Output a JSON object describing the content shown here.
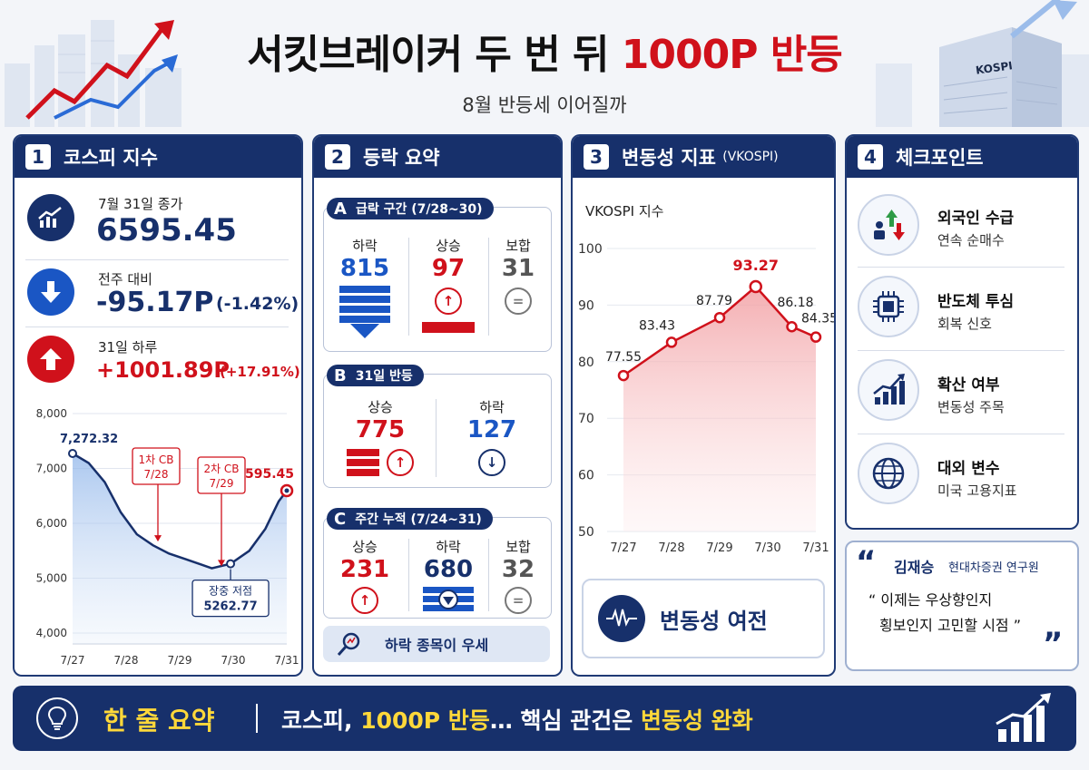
{
  "header": {
    "title_main": "서킷브레이커 두 번 뒤 ",
    "title_accent": "1000P 반등",
    "subtitle": "8월 반등세 이어질까",
    "badge_building": "KOSPI"
  },
  "panel1": {
    "num": "1",
    "title": "코스피 지수",
    "close_label": "7월 31일 종가",
    "close_value": "6595.45",
    "week_label": "전주 대비",
    "week_value": "-95.17P",
    "week_pct": "(-1.42%)",
    "day_label": "31일 하루",
    "day_value": "+1001.89P",
    "day_pct": "(+17.91%)"
  },
  "panel2": {
    "num": "2",
    "title": "등락 요약",
    "secA": {
      "letter": "A",
      "title": "급락 구간 (7/28~30)",
      "cols": [
        {
          "label": "하락",
          "value": "815"
        },
        {
          "label": "상승",
          "value": "97"
        },
        {
          "label": "보합",
          "value": "31"
        }
      ]
    },
    "secB": {
      "letter": "B",
      "title": "31일 반등",
      "cols": [
        {
          "label": "상승",
          "value": "775"
        },
        {
          "label": "하락",
          "value": "127"
        }
      ]
    },
    "secC": {
      "letter": "C",
      "title": "주간 누적 (7/24~31)",
      "cols": [
        {
          "label": "상승",
          "value": "231"
        },
        {
          "label": "하락",
          "value": "680"
        },
        {
          "label": "보합",
          "value": "32"
        }
      ]
    },
    "footer": "하락 종목이 우세"
  },
  "panel3": {
    "num": "3",
    "title": "변동성 지표",
    "title_small": "(VKOSPI)",
    "footer": "변동성 여전"
  },
  "panel4": {
    "num": "4",
    "title": "체크포인트",
    "items": [
      {
        "title": "외국인 수급",
        "sub": "연속 순매수",
        "icon": "investor-flow-icon"
      },
      {
        "title": "반도체 투심",
        "sub": "회복 신호",
        "icon": "chip-icon"
      },
      {
        "title": "확산 여부",
        "sub": "변동성 주목",
        "icon": "growth-chart-icon"
      },
      {
        "title": "대외 변수",
        "sub": "미국 고용지표",
        "icon": "globe-icon"
      }
    ],
    "quote": {
      "name": "김재승",
      "affil": "현대차증권 연구원",
      "line1": "“ 이제는 우상향인지",
      "line2": "횡보인지 고민할 시점 ”"
    }
  },
  "bottom": {
    "label": "한 줄 요약",
    "text_pre": "코스피, ",
    "text_y1": "1000P 반등",
    "text_mid": "… 핵심 관건은 ",
    "text_y2": "변동성 완화"
  },
  "colors": {
    "navy": "#17306b",
    "red": "#d0111b",
    "blue": "#1a56c4",
    "yellow": "#ffd83a"
  },
  "chart_data": [
    {
      "type": "area",
      "title": "",
      "x": [
        "7/27",
        "7/28",
        "7/29",
        "7/30",
        "7/31"
      ],
      "y_ticks": [
        "8,000",
        "7,000",
        "6,000",
        "5,000",
        "4,000"
      ],
      "ylim": [
        4000,
        8000
      ],
      "series": [
        {
          "values": [
            [
              0,
              7272.32
            ],
            [
              0.3,
              7100
            ],
            [
              0.6,
              6750
            ],
            [
              0.9,
              6200
            ],
            [
              1.2,
              5800
            ],
            [
              1.5,
              5600
            ],
            [
              1.8,
              5450
            ],
            [
              2.1,
              5350
            ],
            [
              2.4,
              5250
            ],
            [
              2.6,
              5180
            ],
            [
              2.95,
              5262.77
            ],
            [
              3.3,
              5500
            ],
            [
              3.6,
              5900
            ],
            [
              3.85,
              6400
            ],
            [
              4.0,
              6595.45
            ]
          ]
        }
      ],
      "point_labels": [
        {
          "x": 0,
          "y": 7272.32,
          "label": "7,272.32"
        },
        {
          "x": 4,
          "y": 6595.45,
          "label": "6,595.45"
        }
      ],
      "annotations": [
        {
          "line1": "1차 CB",
          "line2": "7/28"
        },
        {
          "line1": "2차 CB",
          "line2": "7/29"
        },
        {
          "line1": "장중 저점",
          "line2": "5262.77"
        }
      ],
      "grid": true
    },
    {
      "type": "line",
      "title": "VKOSPI 지수",
      "categories": [
        "7/27",
        "7/28",
        "7/29",
        "7/30",
        "7/31"
      ],
      "x": [
        0,
        1,
        2,
        2.75,
        3.5,
        4
      ],
      "values": [
        77.55,
        83.43,
        87.79,
        93.27,
        86.18,
        84.35
      ],
      "ylim": [
        50,
        100
      ],
      "y_ticks": [
        "100",
        "90",
        "80",
        "70",
        "60",
        "50"
      ],
      "grid": true
    }
  ]
}
